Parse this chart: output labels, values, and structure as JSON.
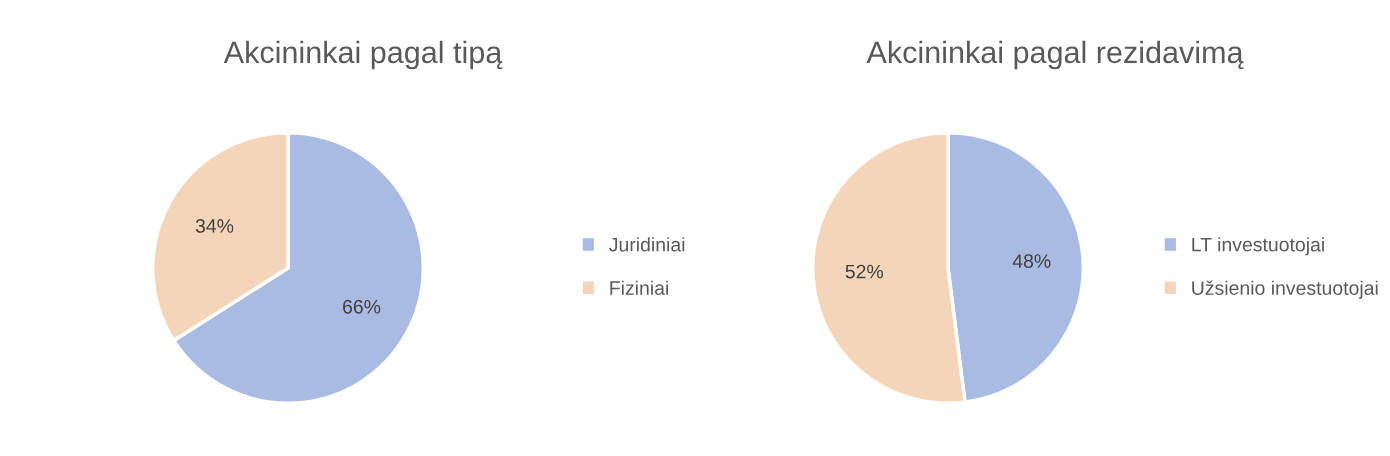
{
  "chart_data": [
    {
      "type": "pie",
      "title": "Akcininkai pagal tipą",
      "categories": [
        "Juridiniai",
        "Fiziniai"
      ],
      "values": [
        66,
        34
      ],
      "colors": [
        "#a9bbe2",
        "#f5d5b9"
      ],
      "value_labels": [
        "66%",
        "34%"
      ],
      "legend": "right"
    },
    {
      "type": "pie",
      "title": "Akcininkai pagal rezidavimą",
      "categories": [
        "LT investuotojai",
        "Užsienio investuotojai"
      ],
      "values": [
        48,
        52
      ],
      "colors": [
        "#a9bbe2",
        "#f5d5b9"
      ],
      "value_labels": [
        "48%",
        "52%"
      ],
      "legend": "right"
    }
  ]
}
